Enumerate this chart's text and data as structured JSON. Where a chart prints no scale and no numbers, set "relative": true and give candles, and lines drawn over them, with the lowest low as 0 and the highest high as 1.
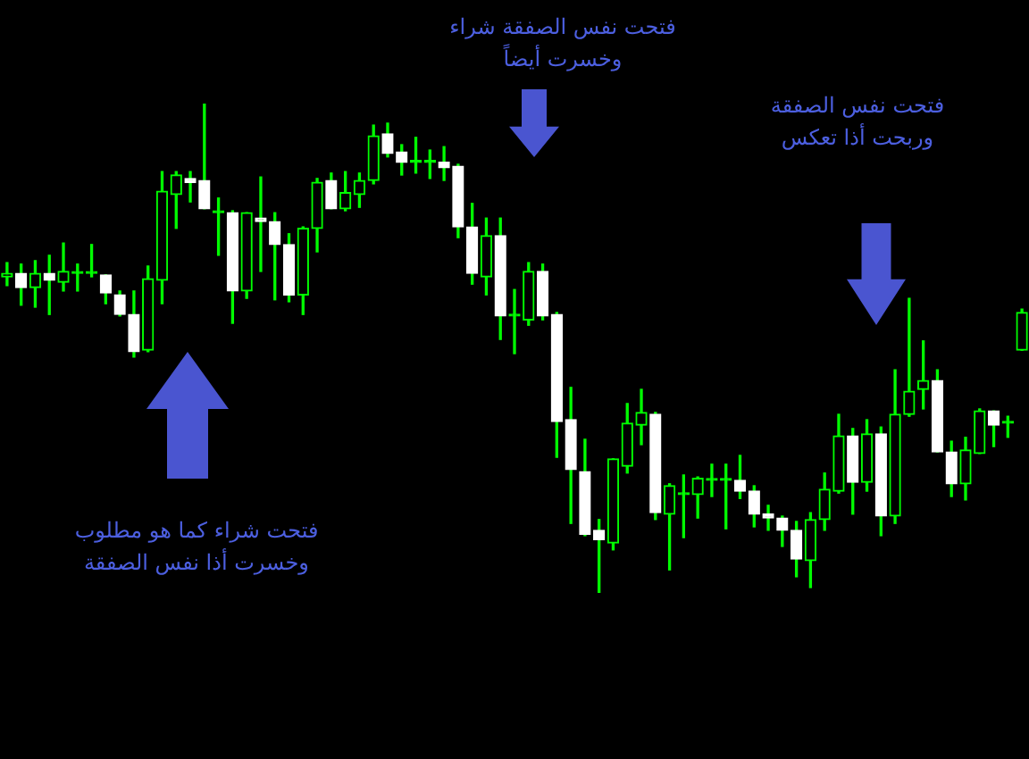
{
  "chart_data": {
    "type": "candlestick",
    "relative": true,
    "tick_labels": false,
    "grid": false,
    "legend": false,
    "colors": [
      "#00ff00",
      "#ffffff",
      "#00ff00",
      "#ffffff",
      "#00ff00",
      "#00ff00",
      "#00ff00",
      "#ffffff",
      "#ffffff",
      "#ffffff",
      "#00ff00",
      "#00ff00",
      "#00ff00",
      "#ffffff",
      "#ffffff",
      "#00ff00",
      "#ffffff",
      "#00ff00",
      "#ffffff",
      "#ffffff",
      "#ffffff",
      "#00ff00",
      "#00ff00",
      "#ffffff",
      "#00ff00",
      "#00ff00",
      "#00ff00",
      "#ffffff",
      "#ffffff",
      "#00ff00",
      "#00ff00",
      "#ffffff",
      "#ffffff",
      "#ffffff",
      "#00ff00",
      "#ffffff",
      "#00ff00",
      "#00ff00",
      "#ffffff",
      "#ffffff",
      "#ffffff",
      "#ffffff",
      "#ffffff",
      "#00ff00",
      "#00ff00",
      "#00ff00",
      "#ffffff",
      "#00ff00",
      "#00ff00",
      "#00ff00",
      "#00ff00",
      "#00ff00",
      "#ffffff",
      "#ffffff",
      "#ffffff",
      "#ffffff",
      "#ffffff",
      "#00ff00",
      "#00ff00",
      "#00ff00",
      "#ffffff",
      "#00ff00",
      "#ffffff",
      "#00ff00",
      "#00ff00",
      "#00ff00",
      "#ffffff",
      "#ffffff",
      "#00ff00",
      "#00ff00",
      "#ffffff",
      "#00ff00",
      "#00ff00"
    ],
    "categories": [
      null,
      null,
      null,
      null,
      null,
      null,
      null,
      null,
      null,
      null,
      null,
      null,
      null,
      null,
      null,
      null,
      null,
      null,
      null,
      null,
      null,
      null,
      null,
      null,
      null,
      null,
      null,
      null,
      null,
      null,
      null,
      null,
      null,
      null,
      null,
      null,
      null,
      null,
      null,
      null,
      null,
      null,
      null,
      null,
      null,
      null,
      null,
      null,
      null,
      null,
      null,
      null,
      null,
      null,
      null,
      null,
      null,
      null,
      null,
      null,
      null,
      null,
      null,
      null,
      null,
      null,
      null,
      null,
      null,
      null,
      null,
      null,
      null
    ],
    "ohlc": [
      [
        0.646,
        0.675,
        0.628,
        0.653
      ],
      [
        0.653,
        0.672,
        0.588,
        0.624
      ],
      [
        0.624,
        0.679,
        0.584,
        0.653
      ],
      [
        0.653,
        0.69,
        0.569,
        0.639
      ],
      [
        0.635,
        0.715,
        0.617,
        0.657
      ],
      [
        0.653,
        0.672,
        0.617,
        0.653
      ],
      [
        0.653,
        0.712,
        0.646,
        0.653
      ],
      [
        0.65,
        0.65,
        0.591,
        0.613
      ],
      [
        0.609,
        0.617,
        0.566,
        0.569
      ],
      [
        0.569,
        0.617,
        0.482,
        0.493
      ],
      [
        0.496,
        0.668,
        0.493,
        0.642
      ],
      [
        0.639,
        0.861,
        0.591,
        0.821
      ],
      [
        0.814,
        0.861,
        0.745,
        0.854
      ],
      [
        0.847,
        0.861,
        0.799,
        0.839
      ],
      [
        0.843,
        1.0,
        0.785,
        0.785
      ],
      [
        0.777,
        0.807,
        0.69,
        0.777
      ],
      [
        0.777,
        0.781,
        0.551,
        0.617
      ],
      [
        0.617,
        0.777,
        0.602,
        0.777
      ],
      [
        0.766,
        0.85,
        0.657,
        0.759
      ],
      [
        0.759,
        0.777,
        0.599,
        0.712
      ],
      [
        0.712,
        0.734,
        0.595,
        0.609
      ],
      [
        0.609,
        0.748,
        0.569,
        0.745
      ],
      [
        0.745,
        0.847,
        0.697,
        0.839
      ],
      [
        0.843,
        0.858,
        0.785,
        0.785
      ],
      [
        0.785,
        0.861,
        0.781,
        0.818
      ],
      [
        0.814,
        0.858,
        0.788,
        0.843
      ],
      [
        0.843,
        0.956,
        0.836,
        0.934
      ],
      [
        0.938,
        0.96,
        0.891,
        0.898
      ],
      [
        0.901,
        0.916,
        0.854,
        0.88
      ],
      [
        0.88,
        0.931,
        0.858,
        0.88
      ],
      [
        0.88,
        0.905,
        0.847,
        0.88
      ],
      [
        0.88,
        0.912,
        0.843,
        0.869
      ],
      [
        0.872,
        0.876,
        0.726,
        0.748
      ],
      [
        0.748,
        0.796,
        0.631,
        0.653
      ],
      [
        0.646,
        0.766,
        0.609,
        0.73
      ],
      [
        0.73,
        0.766,
        0.518,
        0.566
      ],
      [
        0.566,
        0.62,
        0.489,
        0.566
      ],
      [
        0.558,
        0.675,
        0.547,
        0.657
      ],
      [
        0.657,
        0.672,
        0.558,
        0.566
      ],
      [
        0.569,
        0.573,
        0.277,
        0.35
      ],
      [
        0.354,
        0.42,
        0.142,
        0.252
      ],
      [
        0.248,
        0.314,
        0.117,
        0.12
      ],
      [
        0.128,
        0.15,
        0,
        0.109
      ],
      [
        0.102,
        0.274,
        0.088,
        0.274
      ],
      [
        0.259,
        0.387,
        0.245,
        0.347
      ],
      [
        0.343,
        0.416,
        0.303,
        0.369
      ],
      [
        0.365,
        0.369,
        0.15,
        0.164
      ],
      [
        0.161,
        0.223,
        0.047,
        0.219
      ],
      [
        0.201,
        0.241,
        0.113,
        0.201
      ],
      [
        0.201,
        0.237,
        0.153,
        0.234
      ],
      [
        0.23,
        0.263,
        0.197,
        0.23
      ],
      [
        0.23,
        0.263,
        0.131,
        0.23
      ],
      [
        0.23,
        0.281,
        0.193,
        0.208
      ],
      [
        0.208,
        0.219,
        0.135,
        0.161
      ],
      [
        0.161,
        0.179,
        0.128,
        0.153
      ],
      [
        0.153,
        0.157,
        0.095,
        0.128
      ],
      [
        0.128,
        0.146,
        0.033,
        0.069
      ],
      [
        0.066,
        0.164,
        0.011,
        0.15
      ],
      [
        0.15,
        0.245,
        0.128,
        0.212
      ],
      [
        0.208,
        0.365,
        0.204,
        0.321
      ],
      [
        0.321,
        0.336,
        0.161,
        0.226
      ],
      [
        0.226,
        0.354,
        0.208,
        0.325
      ],
      [
        0.325,
        0.339,
        0.117,
        0.157
      ],
      [
        0.157,
        0.456,
        0.142,
        0.365
      ],
      [
        0.365,
        0.602,
        0.361,
        0.412
      ],
      [
        0.416,
        0.515,
        0.376,
        0.434
      ],
      [
        0.434,
        0.456,
        0.288,
        0.288
      ],
      [
        0.288,
        0.31,
        0.197,
        0.223
      ],
      [
        0.223,
        0.318,
        0.19,
        0.292
      ],
      [
        0.285,
        0.376,
        0.285,
        0.372
      ],
      [
        0.372,
        0.372,
        0.299,
        0.343
      ],
      [
        0.347,
        0.361,
        0.318,
        0.347
      ],
      [
        0.496,
        0.58,
        0.496,
        0.573
      ]
    ],
    "annotations": [
      "فتحت نفس الصفقة شراء\nوخسرت أيضاً",
      "فتحت نفس الصفقة\nوربحت أذا تعكس",
      "فتحت شراء كما هو مطلوب\nوخسرت أذا نفس الصفقة"
    ]
  }
}
